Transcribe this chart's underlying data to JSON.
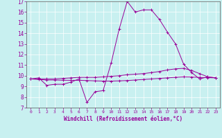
{
  "xlabel": "Windchill (Refroidissement éolien,°C)",
  "bg_color": "#c8f0f0",
  "line_color": "#990099",
  "grid_color": "#ffffff",
  "xlim": [
    -0.5,
    23.5
  ],
  "ylim": [
    7,
    17
  ],
  "xticks": [
    0,
    1,
    2,
    3,
    4,
    5,
    6,
    7,
    8,
    9,
    10,
    11,
    12,
    13,
    14,
    15,
    16,
    17,
    18,
    19,
    20,
    21,
    22,
    23
  ],
  "yticks": [
    7,
    8,
    9,
    10,
    11,
    12,
    13,
    14,
    15,
    16,
    17
  ],
  "series1_x": [
    0,
    1,
    2,
    3,
    4,
    5,
    6,
    7,
    8,
    9,
    10,
    11,
    12,
    13,
    14,
    15,
    16,
    17,
    18,
    19,
    20,
    21,
    22,
    23
  ],
  "series1_y": [
    9.7,
    9.8,
    9.1,
    9.2,
    9.2,
    9.4,
    9.7,
    7.5,
    8.5,
    8.6,
    11.2,
    14.4,
    17.0,
    16.0,
    16.2,
    16.2,
    15.3,
    14.1,
    13.0,
    11.1,
    10.3,
    9.7,
    9.9,
    9.8
  ],
  "series2_x": [
    0,
    1,
    2,
    3,
    4,
    5,
    6,
    7,
    8,
    9,
    10,
    11,
    12,
    13,
    14,
    15,
    16,
    17,
    18,
    19,
    20,
    21,
    22,
    23
  ],
  "series2_y": [
    9.7,
    9.7,
    9.7,
    9.7,
    9.75,
    9.8,
    9.85,
    9.85,
    9.85,
    9.9,
    9.95,
    10.0,
    10.1,
    10.15,
    10.2,
    10.3,
    10.4,
    10.55,
    10.65,
    10.7,
    10.5,
    10.2,
    9.9,
    9.8
  ],
  "series3_x": [
    0,
    1,
    2,
    3,
    4,
    5,
    6,
    7,
    8,
    9,
    10,
    11,
    12,
    13,
    14,
    15,
    16,
    17,
    18,
    19,
    20,
    21,
    22,
    23
  ],
  "series3_y": [
    9.7,
    9.65,
    9.6,
    9.6,
    9.58,
    9.57,
    9.57,
    9.55,
    9.52,
    9.5,
    9.5,
    9.52,
    9.55,
    9.6,
    9.65,
    9.7,
    9.75,
    9.8,
    9.85,
    9.9,
    9.88,
    9.85,
    9.82,
    9.8
  ]
}
